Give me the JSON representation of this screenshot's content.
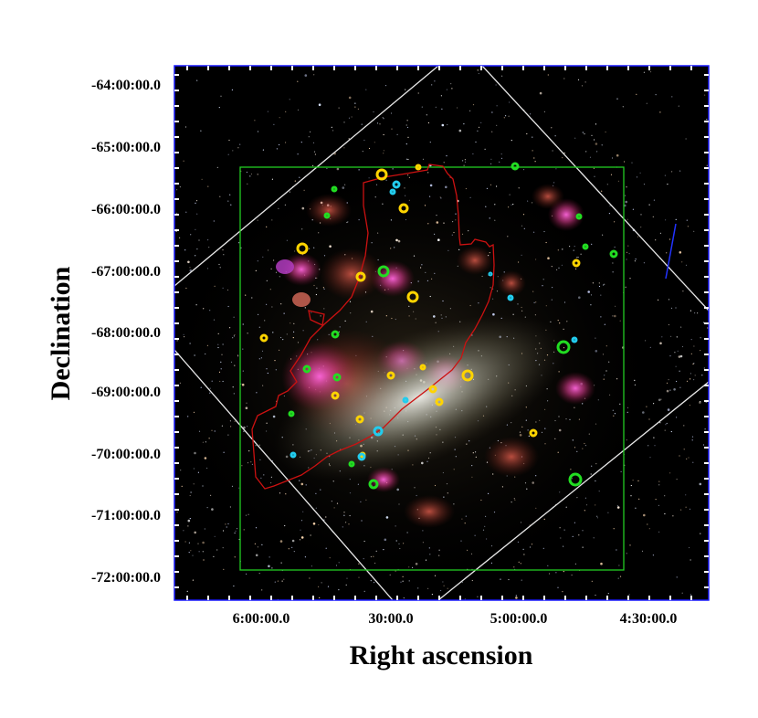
{
  "figure": {
    "x_axis_title": "Right ascension",
    "y_axis_title": "Declination",
    "dec_tick_labels": [
      "-64:00:00.0",
      "-65:00:00.0",
      "-66:00:00.0",
      "-67:00:00.0",
      "-68:00:00.0",
      "-69:00:00.0",
      "-70:00:00.0",
      "-71:00:00.0",
      "-72:00:00.0"
    ],
    "ra_tick_labels": [
      "6:00:00.0",
      "30:00.0",
      "5:00:00.0",
      "4:30:00.0"
    ]
  },
  "colors": {
    "frame": "#1a1aff",
    "background": "#000000",
    "survey_box": "#22cc22",
    "footprint": "#cc1111",
    "grid_lines": "#e8e8e8",
    "marker_yellow": "#ffd400",
    "marker_green": "#22dd22",
    "marker_cyan": "#22ccee"
  },
  "markers": {
    "yellow": 17,
    "green": 15,
    "cyan": 9
  }
}
